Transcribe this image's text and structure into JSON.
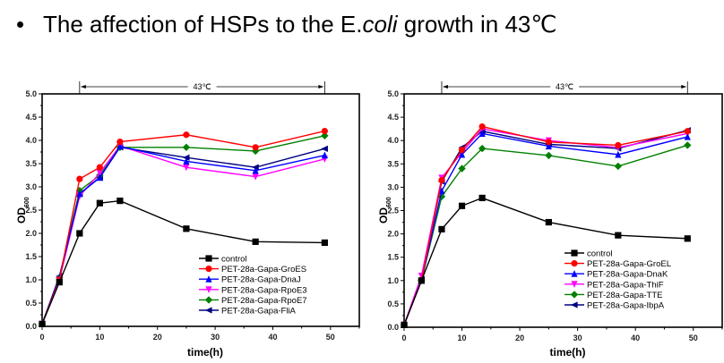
{
  "slide": {
    "bullet": "•",
    "title_pre": "The affection of HSPs to the E.",
    "title_italic": "coli",
    "title_post": " growth in 43℃"
  },
  "chart_data": [
    {
      "type": "line",
      "title": "",
      "xlabel": "time(h)",
      "ylabel": "OD",
      "ylabel_sub": "600",
      "xlim": [
        0,
        55
      ],
      "ylim": [
        0,
        5.0
      ],
      "xticks": [
        0,
        10,
        20,
        30,
        40,
        50
      ],
      "yticks": [
        "0.0",
        "0.5",
        "1.0",
        "1.5",
        "2.0",
        "2.5",
        "3.0",
        "3.5",
        "4.0",
        "4.5",
        "5.0"
      ],
      "annotation": {
        "text": "43℃",
        "from_x": 6.5,
        "to_x": 49
      },
      "legend_position": "bottom-right",
      "x": [
        0,
        3,
        6.5,
        10,
        13.5,
        25,
        37,
        49
      ],
      "series": [
        {
          "name": "control",
          "color": "#000000",
          "marker": "square",
          "values": [
            0.05,
            0.95,
            2.0,
            2.65,
            2.7,
            2.1,
            1.82,
            1.8
          ]
        },
        {
          "name": "PET-28a-Gapa-GroES",
          "color": "#ff0000",
          "marker": "circle",
          "values": [
            0.05,
            1.0,
            3.17,
            3.42,
            3.97,
            4.12,
            3.85,
            4.2
          ]
        },
        {
          "name": "PET-28a-Gapa-DnaJ",
          "color": "#0000ff",
          "marker": "triangle-up",
          "values": [
            0.05,
            1.05,
            2.85,
            3.2,
            3.87,
            3.55,
            3.35,
            3.68
          ]
        },
        {
          "name": "PET-28a-Gapa-RpoE3",
          "color": "#ff00ff",
          "marker": "triangle-down",
          "values": [
            0.05,
            1.0,
            2.8,
            3.3,
            3.88,
            3.42,
            3.22,
            3.6
          ]
        },
        {
          "name": "PET-28a-Gapa-RpoE7",
          "color": "#008000",
          "marker": "diamond",
          "values": [
            0.05,
            1.05,
            2.92,
            3.25,
            3.85,
            3.85,
            3.77,
            4.1
          ]
        },
        {
          "name": "PET-28a-Gapa-FliA",
          "color": "#000080",
          "marker": "triangle-left",
          "values": [
            0.05,
            1.08,
            2.85,
            3.2,
            3.85,
            3.63,
            3.42,
            3.82
          ]
        }
      ]
    },
    {
      "type": "line",
      "title": "",
      "xlabel": "time(h)",
      "ylabel": "OD",
      "ylabel_sub": "600",
      "xlim": [
        0,
        55
      ],
      "ylim": [
        0,
        5.0
      ],
      "xticks": [
        0,
        10,
        20,
        30,
        40,
        50
      ],
      "yticks": [
        "0.0",
        "0.5",
        "1.0",
        "1.5",
        "2.0",
        "2.5",
        "3.0",
        "3.5",
        "4.0",
        "4.5",
        "5.0"
      ],
      "annotation": {
        "text": "43℃",
        "from_x": 6.5,
        "to_x": 49
      },
      "legend_position": "bottom-right",
      "x": [
        0,
        3,
        6.5,
        10,
        13.5,
        25,
        37,
        49
      ],
      "series": [
        {
          "name": "control",
          "color": "#000000",
          "marker": "square",
          "values": [
            0.05,
            1.0,
            2.1,
            2.6,
            2.77,
            2.25,
            1.97,
            1.9
          ]
        },
        {
          "name": "PET-28a-Gapa-GroEL",
          "color": "#ff0000",
          "marker": "circle",
          "values": [
            0.05,
            1.0,
            3.15,
            3.8,
            4.3,
            3.97,
            3.9,
            4.2
          ]
        },
        {
          "name": "PET-28a-Gapa-DnaK",
          "color": "#0000ff",
          "marker": "triangle-up",
          "values": [
            0.05,
            1.0,
            2.92,
            3.7,
            4.15,
            3.88,
            3.7,
            4.08
          ]
        },
        {
          "name": "PET-28a-Gapa-ThiF",
          "color": "#ff00ff",
          "marker": "triangle-down",
          "values": [
            0.05,
            1.1,
            3.2,
            3.75,
            4.25,
            4.0,
            3.85,
            4.15
          ]
        },
        {
          "name": "PET-28a-Gapa-TTE",
          "color": "#008000",
          "marker": "diamond",
          "values": [
            0.05,
            1.0,
            2.8,
            3.4,
            3.83,
            3.68,
            3.45,
            3.9
          ]
        },
        {
          "name": "PET-28a-Gapa-IbpA",
          "color": "#000080",
          "marker": "triangle-left",
          "values": [
            0.05,
            1.03,
            3.12,
            3.85,
            4.2,
            3.92,
            3.83,
            4.22
          ]
        }
      ]
    }
  ]
}
